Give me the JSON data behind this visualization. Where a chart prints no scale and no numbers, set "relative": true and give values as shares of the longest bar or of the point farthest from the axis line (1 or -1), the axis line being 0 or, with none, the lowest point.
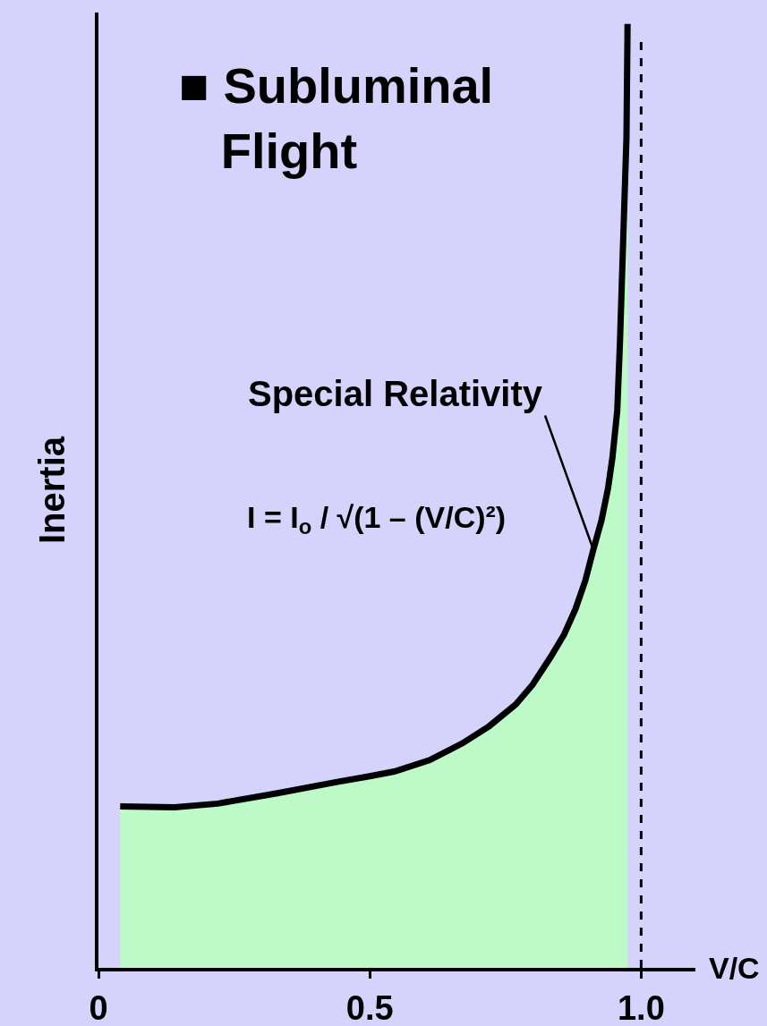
{
  "chart_data": {
    "type": "area",
    "title": "■ Subluminal Flight",
    "xlabel": "V/C",
    "ylabel": "Inertia",
    "relative": true,
    "x": [
      0.04,
      0.14,
      0.22,
      0.33,
      0.44,
      0.5,
      0.545,
      0.61,
      0.671,
      0.72,
      0.769,
      0.8,
      0.833,
      0.858,
      0.879,
      0.897,
      0.912,
      0.927,
      0.939,
      0.947,
      0.956,
      0.961,
      0.967,
      0.973,
      0.975
    ],
    "values": [
      0.171,
      0.17,
      0.174,
      0.185,
      0.197,
      0.203,
      0.208,
      0.22,
      0.238,
      0.256,
      0.279,
      0.3,
      0.329,
      0.353,
      0.38,
      0.41,
      0.443,
      0.474,
      0.508,
      0.54,
      0.59,
      0.663,
      0.772,
      0.88,
      1.0
    ],
    "color": "#bdfac7",
    "xlim": [
      0,
      1.1
    ],
    "xticks": [
      0,
      0.5,
      {
        "value": 1,
        "label": "1.0"
      }
    ],
    "ref_lines": [
      {
        "axis": "x",
        "value": 1,
        "line_style": "dashed",
        "color": "#000000"
      }
    ],
    "annotations": [
      {
        "text": "Special Relativity",
        "x": 0.912,
        "y": 0.443
      },
      "I = I$_{o}$ / √(1 – (V/C)²)"
    ],
    "tick_labels": "x",
    "grid": false,
    "marker": "none",
    "line_style": "solid"
  }
}
